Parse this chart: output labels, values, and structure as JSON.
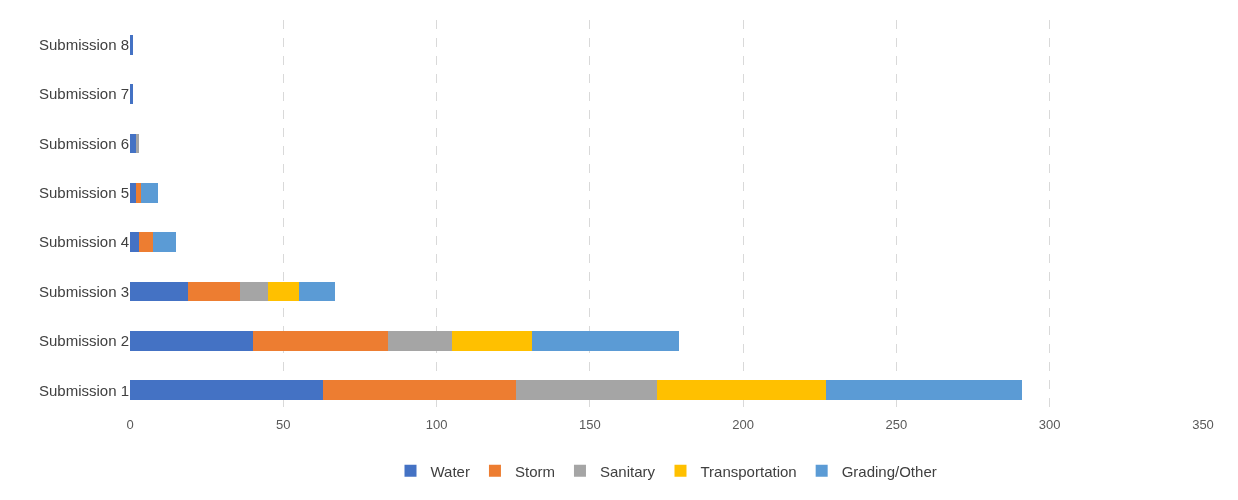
{
  "chart_data": {
    "type": "bar",
    "orientation": "horizontal",
    "stacked": true,
    "categories": [
      "Submission 8",
      "Submission 7",
      "Submission 6",
      "Submission 5",
      "Submission 4",
      "Submission 3",
      "Submission 2",
      "Submission 1"
    ],
    "series": [
      {
        "name": "Water",
        "color": "#4472c4",
        "values": [
          1,
          1,
          2,
          2,
          3,
          19,
          40,
          63
        ]
      },
      {
        "name": "Storm",
        "color": "#ed7d31",
        "values": [
          0,
          0,
          0,
          1.5,
          4.5,
          17,
          44,
          63
        ]
      },
      {
        "name": "Sanitary",
        "color": "#a5a5a5",
        "values": [
          0,
          0,
          1,
          0,
          0,
          9,
          21,
          46
        ]
      },
      {
        "name": "Transportation",
        "color": "#ffc000",
        "values": [
          0,
          0,
          0,
          0,
          0,
          10,
          26,
          55
        ]
      },
      {
        "name": "Grading/Other",
        "color": "#5b9bd5",
        "values": [
          0,
          0,
          0,
          5.5,
          7.5,
          12,
          48,
          64
        ]
      }
    ],
    "xlim": [
      0,
      350
    ],
    "xticks": [
      0,
      50,
      100,
      150,
      200,
      250,
      300,
      350
    ],
    "grid": "x",
    "legend": "bottom"
  }
}
